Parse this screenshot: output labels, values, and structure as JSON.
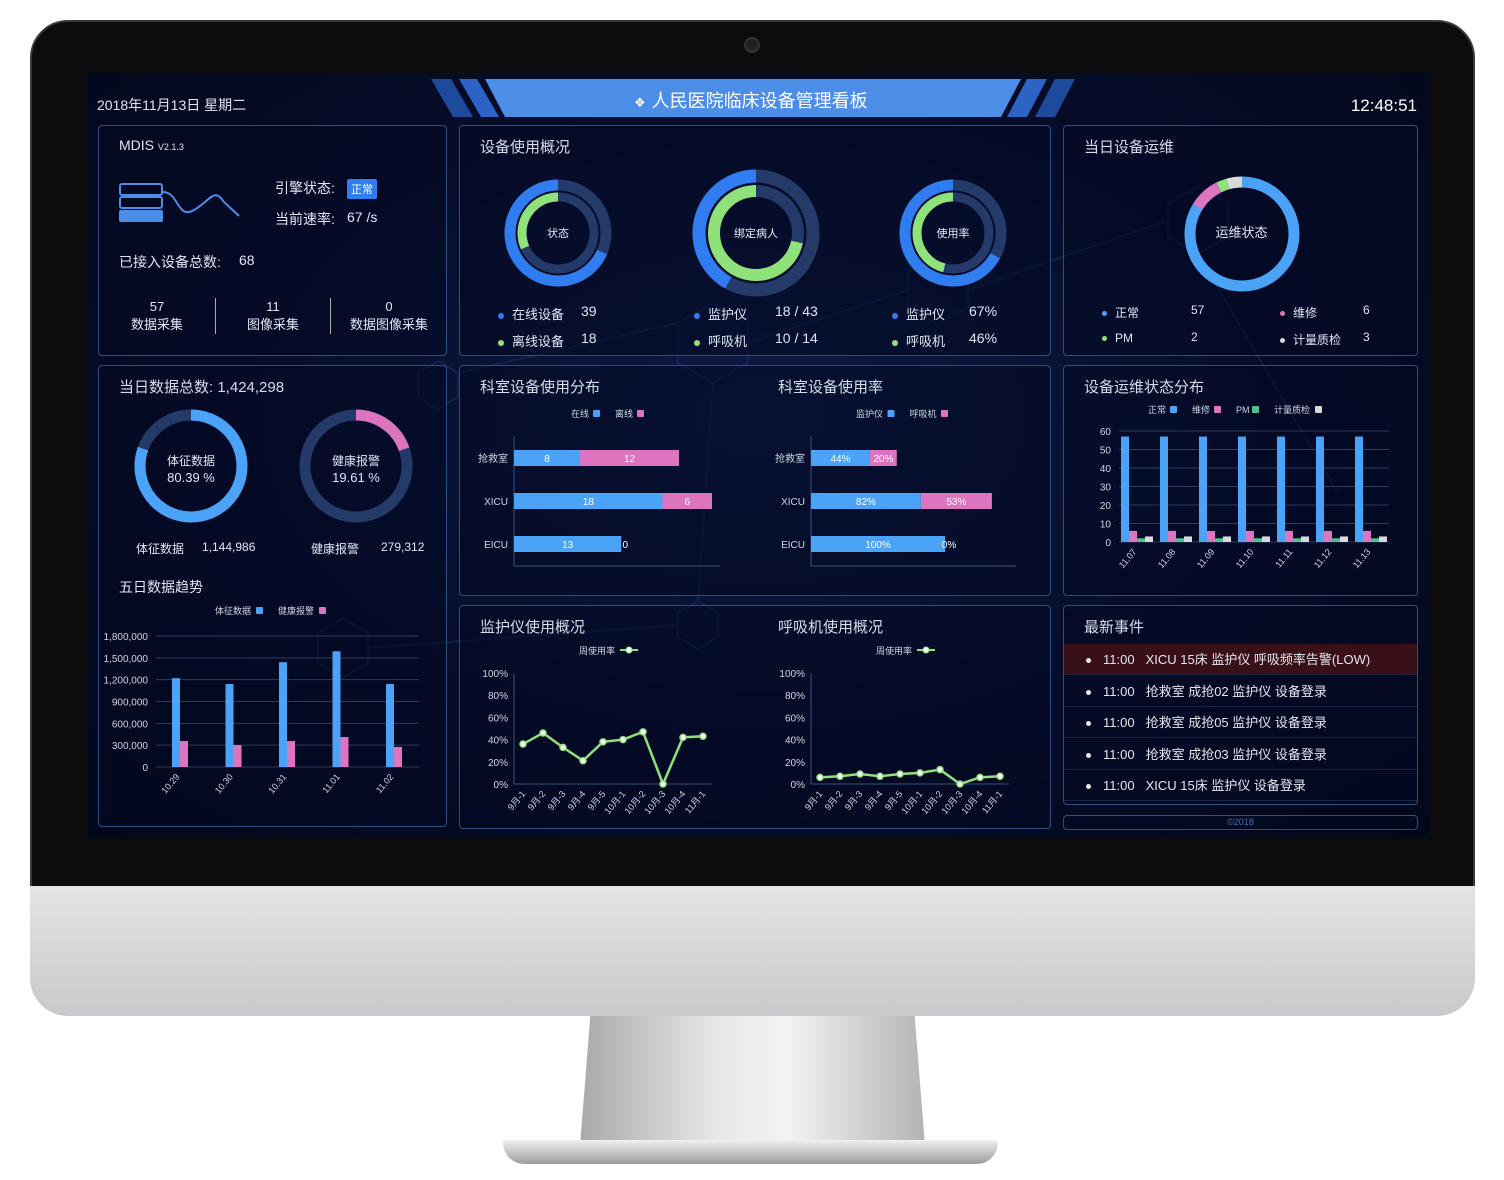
{
  "header": {
    "date": "2018年11月13日 星期二",
    "title": "人民医院临床设备管理看板",
    "time": "12:48:51",
    "title_icon": "diamond-cluster-icon"
  },
  "colors": {
    "blue": "#4aa3f7",
    "pink": "#dc74c0",
    "green": "#8fe27a",
    "gray": "#d9d9d9",
    "ring_bg": "#243a69",
    "alert_row": "#3a1018",
    "banner": "#4c8de8"
  },
  "system": {
    "name": "MDIS",
    "version": "V2.1.3",
    "engine_label": "引擎状态:",
    "engine_status": "正常",
    "rate_label": "当前速率:",
    "rate_value": "67 /s",
    "total_label": "已接入设备总数:",
    "total_value": "68",
    "stats": [
      {
        "value": "57",
        "label": "数据采集"
      },
      {
        "value": "11",
        "label": "图像采集"
      },
      {
        "value": "0",
        "label": "数据图像采集"
      }
    ]
  },
  "usage": {
    "title": "设备使用概况",
    "donuts": [
      {
        "center": "状态",
        "items": [
          {
            "label": "在线设备",
            "value": "39"
          },
          {
            "label": "离线设备",
            "value": "18"
          }
        ],
        "outer_pct": 68.4,
        "inner_pct": 31.6
      },
      {
        "center": "绑定病人",
        "items": [
          {
            "label": "监护仪",
            "value": "18 / 43"
          },
          {
            "label": "呼吸机",
            "value": "10 / 14"
          }
        ],
        "outer_pct": 41.9,
        "inner_pct": 71.4
      },
      {
        "center": "使用率",
        "items": [
          {
            "label": "监护仪",
            "value": "67%"
          },
          {
            "label": "呼吸机",
            "value": "46%"
          }
        ],
        "outer_pct": 67,
        "inner_pct": 46
      }
    ]
  },
  "maintenance": {
    "title": "当日设备运维",
    "center": "运维状态",
    "items": [
      {
        "label": "正常",
        "value": "57"
      },
      {
        "label": "维修",
        "value": "6"
      },
      {
        "label": "PM",
        "value": "2"
      },
      {
        "label": "计量质检",
        "value": "3"
      }
    ]
  },
  "daily": {
    "title_label": "当日数据总数:",
    "total": "1,424,298",
    "donuts": [
      {
        "label": "体征数据",
        "pct_text": "80.39 %",
        "pct": 80.39,
        "footer_label": "体征数据",
        "footer_value": "1,144,986"
      },
      {
        "label": "健康报警",
        "pct_text": "19.61 %",
        "pct": 19.61,
        "footer_label": "健康报警",
        "footer_value": "279,312"
      }
    ]
  },
  "chart_data": [
    {
      "id": "five_day",
      "type": "bar",
      "title": "五日数据趋势",
      "categories": [
        "10.29",
        "10.30",
        "10.31",
        "11.01",
        "11.02"
      ],
      "series": [
        {
          "name": "体征数据",
          "values": [
            1220000,
            1140000,
            1440000,
            1590000,
            1140000
          ]
        },
        {
          "name": "健康报警",
          "values": [
            357000,
            302000,
            357000,
            412000,
            275000
          ]
        }
      ],
      "ylim": [
        0,
        1800000
      ],
      "yticks": [
        "0",
        "300,000",
        "600,000",
        "900,000",
        "1,200,000",
        "1,500,000",
        "1,800,000"
      ],
      "grid": true,
      "legend": "top"
    },
    {
      "id": "dept_dist",
      "type": "bar",
      "orientation": "horizontal",
      "stacked": true,
      "title": "科室设备使用分布",
      "categories": [
        "抢救室",
        "XICU",
        "EICU"
      ],
      "series": [
        {
          "name": "在线",
          "values": [
            8,
            18,
            13
          ]
        },
        {
          "name": "离线",
          "values": [
            12,
            6,
            0
          ]
        }
      ],
      "legend": "top"
    },
    {
      "id": "dept_rate",
      "type": "bar",
      "orientation": "horizontal",
      "stacked": true,
      "title": "科室设备使用率",
      "categories": [
        "抢救室",
        "XICU",
        "EICU"
      ],
      "series": [
        {
          "name": "监护仪",
          "values": [
            44,
            82,
            100
          ],
          "labels": [
            "44%",
            "82%",
            "100%"
          ]
        },
        {
          "name": "呼吸机",
          "values": [
            20,
            53,
            0
          ],
          "labels": [
            "20%",
            "53%",
            "0%"
          ]
        }
      ],
      "legend": "top"
    },
    {
      "id": "maint_dist",
      "type": "bar",
      "title": "设备运维状态分布",
      "categories": [
        "11.07",
        "11.08",
        "11.09",
        "11.10",
        "11.11",
        "11.12",
        "11.13"
      ],
      "series": [
        {
          "name": "正常",
          "values": [
            57,
            57,
            57,
            57,
            57,
            57,
            57
          ]
        },
        {
          "name": "维修",
          "values": [
            6,
            6,
            6,
            6,
            6,
            6,
            6
          ]
        },
        {
          "name": "PM",
          "values": [
            2,
            2,
            2,
            2,
            2,
            2,
            2
          ]
        },
        {
          "name": "计量质检",
          "values": [
            3,
            3,
            3,
            3,
            3,
            3,
            3
          ]
        }
      ],
      "ylim": [
        0,
        60
      ],
      "yticks": [
        "0",
        "10",
        "20",
        "30",
        "40",
        "50",
        "60"
      ],
      "grid": true,
      "legend": "top"
    },
    {
      "id": "monitor_usage",
      "type": "line",
      "title": "监护仪使用概况",
      "categories": [
        "9月-1",
        "9月-2",
        "9月-3",
        "9月-4",
        "9月-5",
        "10月-1",
        "10月-2",
        "10月-3",
        "10月-4",
        "11月-1"
      ],
      "series": [
        {
          "name": "周使用率",
          "values": [
            36,
            46,
            33,
            21,
            38,
            40,
            47,
            0,
            42,
            43
          ]
        }
      ],
      "ylim": [
        0,
        100
      ],
      "yticks": [
        "0%",
        "20%",
        "40%",
        "60%",
        "80%",
        "100%"
      ],
      "legend": "top"
    },
    {
      "id": "vent_usage",
      "type": "line",
      "title": "呼吸机使用概况",
      "categories": [
        "9月-1",
        "9月-2",
        "9月-3",
        "9月-4",
        "9月-5",
        "10月-1",
        "10月-2",
        "10月-3",
        "10月-4",
        "11月-1"
      ],
      "series": [
        {
          "name": "周使用率",
          "values": [
            6,
            7,
            9,
            7,
            9,
            10,
            13,
            0,
            6,
            7
          ]
        }
      ],
      "ylim": [
        0,
        100
      ],
      "yticks": [
        "0%",
        "20%",
        "40%",
        "60%",
        "80%",
        "100%"
      ],
      "legend": "top"
    }
  ],
  "events": {
    "title": "最新事件",
    "items": [
      {
        "time": "11:00",
        "text": "XICU 15床 监护仪 呼吸频率告警(LOW)",
        "alert": true
      },
      {
        "time": "11:00",
        "text": "抢救室 成抢02 监护仪 设备登录"
      },
      {
        "time": "11:00",
        "text": "抢救室 成抢05 监护仪 设备登录"
      },
      {
        "time": "11:00",
        "text": "抢救室 成抢03 监护仪 设备登录"
      },
      {
        "time": "11:00",
        "text": "XICU 15床 监护仪 设备登录"
      }
    ]
  },
  "footer": "©2018"
}
